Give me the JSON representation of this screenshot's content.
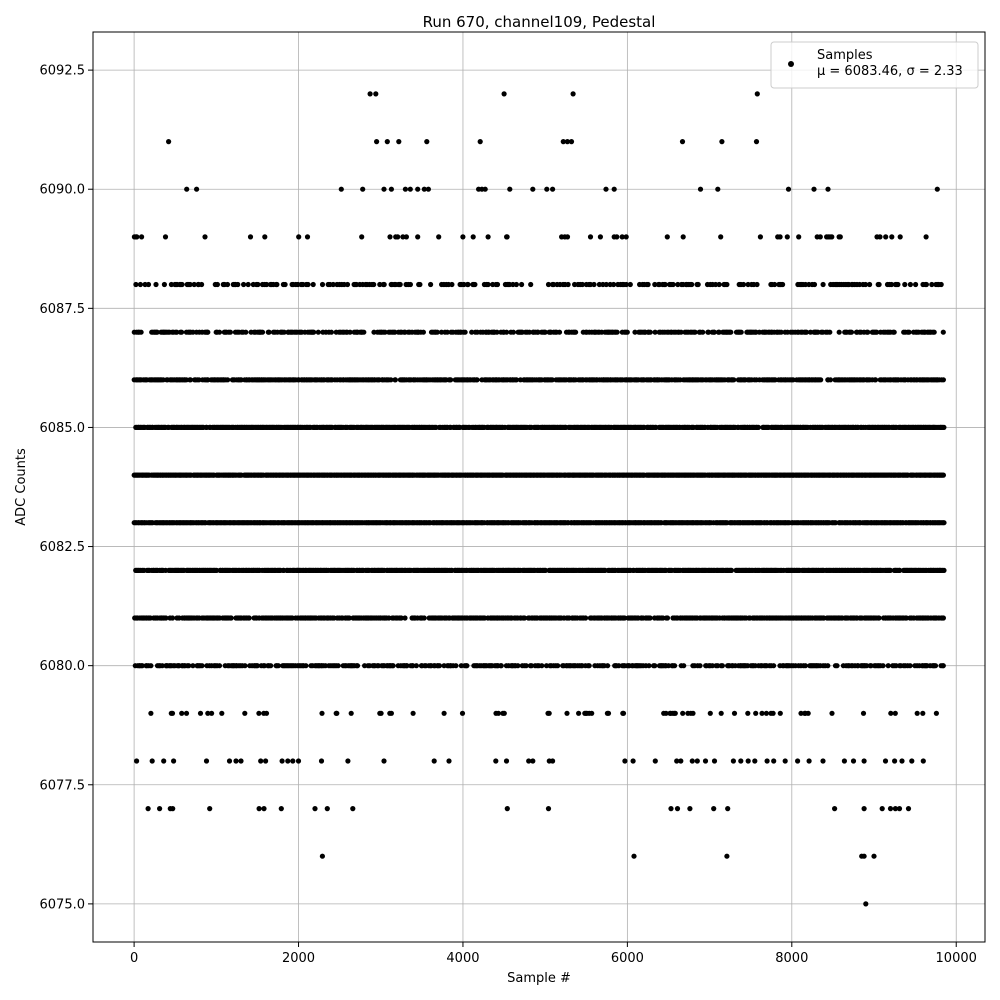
{
  "chart_data": {
    "type": "scatter",
    "title": "Run 670, channel109, Pedestal",
    "xlabel": "Sample #",
    "ylabel": "ADC Counts",
    "xlim": [
      -500,
      10350
    ],
    "ylim": [
      6074.2,
      6093.3
    ],
    "xticks": [
      0,
      2000,
      4000,
      6000,
      8000,
      10000
    ],
    "xtick_labels": [
      "0",
      "2000",
      "4000",
      "6000",
      "8000",
      "10000"
    ],
    "yticks": [
      6075.0,
      6077.5,
      6080.0,
      6082.5,
      6085.0,
      6087.5,
      6090.0,
      6092.5
    ],
    "ytick_labels": [
      "6075.0",
      "6077.5",
      "6080.0",
      "6082.5",
      "6085.0",
      "6087.5",
      "6090.0",
      "6092.5"
    ],
    "grid": true,
    "legend_position": "top-right",
    "marker_color": "#000000",
    "series": [
      {
        "name": "Samples",
        "stats_label": "μ = 6083.46, σ = 2.33",
        "mean": 6083.46,
        "std": 2.33,
        "n_samples": 9850,
        "points": [
          [
            2290,
            6076
          ],
          [
            6080,
            6076
          ],
          [
            7210,
            6076
          ],
          [
            8850,
            6076
          ],
          [
            8880,
            6076
          ],
          [
            9000,
            6076
          ],
          [
            8900,
            6075
          ],
          [
            170,
            6077
          ],
          [
            310,
            6077
          ],
          [
            440,
            6077
          ],
          [
            470,
            6077
          ],
          [
            920,
            6077
          ],
          [
            1520,
            6077
          ],
          [
            1580,
            6077
          ],
          [
            1790,
            6077
          ],
          [
            2200,
            6077
          ],
          [
            2350,
            6077
          ],
          [
            2660,
            6077
          ],
          [
            4540,
            6077
          ],
          [
            5040,
            6077
          ],
          [
            6530,
            6077
          ],
          [
            6610,
            6077
          ],
          [
            6760,
            6077
          ],
          [
            7050,
            6077
          ],
          [
            7220,
            6077
          ],
          [
            8520,
            6077
          ],
          [
            8880,
            6077
          ],
          [
            9100,
            6077
          ],
          [
            9200,
            6077
          ],
          [
            9260,
            6077
          ],
          [
            9310,
            6077
          ],
          [
            9420,
            6077
          ],
          [
            30,
            6078
          ],
          [
            220,
            6078
          ],
          [
            360,
            6078
          ],
          [
            480,
            6078
          ],
          [
            880,
            6078
          ],
          [
            1160,
            6078
          ],
          [
            1240,
            6078
          ],
          [
            1300,
            6078
          ],
          [
            1540,
            6078
          ],
          [
            1600,
            6078
          ],
          [
            1800,
            6078
          ],
          [
            1870,
            6078
          ],
          [
            1930,
            6078
          ],
          [
            2000,
            6078
          ],
          [
            2280,
            6078
          ],
          [
            2600,
            6078
          ],
          [
            3040,
            6078
          ],
          [
            3650,
            6078
          ],
          [
            3830,
            6078
          ],
          [
            4400,
            6078
          ],
          [
            4530,
            6078
          ],
          [
            4800,
            6078
          ],
          [
            4850,
            6078
          ],
          [
            5050,
            6078
          ],
          [
            5090,
            6078
          ],
          [
            5970,
            6078
          ],
          [
            6070,
            6078
          ],
          [
            6340,
            6078
          ],
          [
            6600,
            6078
          ],
          [
            6650,
            6078
          ],
          [
            6790,
            6078
          ],
          [
            6850,
            6078
          ],
          [
            6950,
            6078
          ],
          [
            7060,
            6078
          ],
          [
            7290,
            6078
          ],
          [
            7380,
            6078
          ],
          [
            7470,
            6078
          ],
          [
            7550,
            6078
          ],
          [
            7700,
            6078
          ],
          [
            7780,
            6078
          ],
          [
            7920,
            6078
          ],
          [
            8070,
            6078
          ],
          [
            8210,
            6078
          ],
          [
            8380,
            6078
          ],
          [
            8640,
            6078
          ],
          [
            8750,
            6078
          ],
          [
            8880,
            6078
          ],
          [
            9140,
            6078
          ],
          [
            9250,
            6078
          ],
          [
            9340,
            6078
          ],
          [
            9460,
            6078
          ],
          [
            9600,
            6078
          ],
          [
            2870,
            6092
          ],
          [
            2940,
            6092
          ],
          [
            4500,
            6092
          ],
          [
            5340,
            6092
          ],
          [
            7580,
            6092
          ],
          [
            420,
            6091
          ],
          [
            2950,
            6091
          ],
          [
            3080,
            6091
          ],
          [
            3220,
            6091
          ],
          [
            3560,
            6091
          ],
          [
            4210,
            6091
          ],
          [
            5220,
            6091
          ],
          [
            5270,
            6091
          ],
          [
            5320,
            6091
          ],
          [
            6670,
            6091
          ],
          [
            7150,
            6091
          ],
          [
            7570,
            6091
          ],
          [
            640,
            6090
          ],
          [
            760,
            6090
          ],
          [
            2520,
            6090
          ],
          [
            2780,
            6090
          ],
          [
            3040,
            6090
          ],
          [
            3130,
            6090
          ],
          [
            3300,
            6090
          ],
          [
            3360,
            6090
          ],
          [
            3450,
            6090
          ],
          [
            3530,
            6090
          ],
          [
            3580,
            6090
          ],
          [
            4190,
            6090
          ],
          [
            4230,
            6090
          ],
          [
            4270,
            6090
          ],
          [
            4570,
            6090
          ],
          [
            4850,
            6090
          ],
          [
            5020,
            6090
          ],
          [
            5090,
            6090
          ],
          [
            5740,
            6090
          ],
          [
            5840,
            6090
          ],
          [
            6890,
            6090
          ],
          [
            7100,
            6090
          ],
          [
            7960,
            6090
          ],
          [
            8270,
            6090
          ],
          [
            8440,
            6090
          ],
          [
            9770,
            6090
          ]
        ]
      }
    ]
  }
}
